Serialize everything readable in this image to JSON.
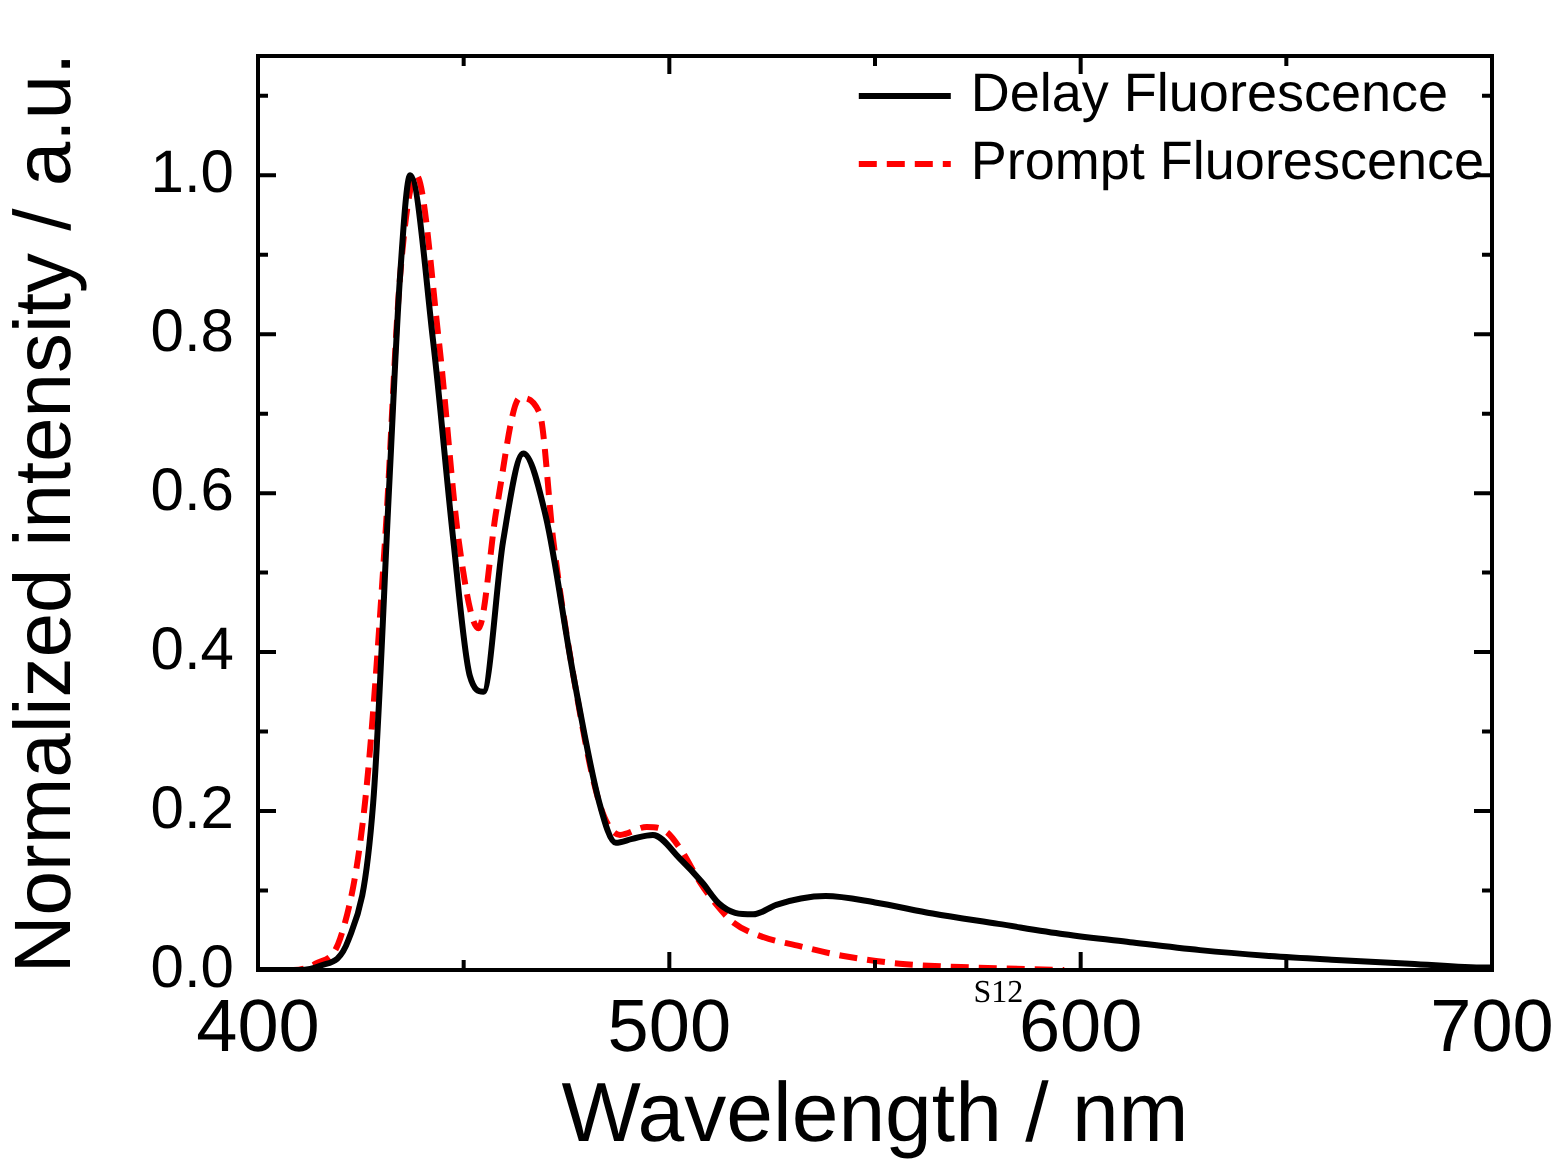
{
  "chart_data": {
    "type": "line",
    "xlabel": "Wavelength / nm",
    "ylabel": "Normalized intensity / a.u.",
    "xlim": [
      400,
      700
    ],
    "ylim": [
      0,
      1.15
    ],
    "xticks": [
      400,
      {
        "value": 450,
        "label": null
      },
      500,
      {
        "value": 550,
        "label": null
      },
      600,
      {
        "value": 650,
        "label": null
      },
      700
    ],
    "yticks": [
      {
        "value": 0,
        "label": "0.0"
      },
      {
        "value": 0.1,
        "label": null
      },
      {
        "value": 0.2,
        "label": "0.2"
      },
      {
        "value": 0.3,
        "label": null
      },
      {
        "value": 0.4,
        "label": "0.4"
      },
      {
        "value": 0.5,
        "label": null
      },
      {
        "value": 0.6,
        "label": "0.6"
      },
      {
        "value": 0.7,
        "label": null
      },
      {
        "value": 0.8,
        "label": "0.8"
      },
      {
        "value": 0.9,
        "label": null
      },
      {
        "value": 1,
        "label": "1.0"
      },
      {
        "value": 1.1,
        "label": null
      }
    ],
    "grid": false,
    "legend": "top right",
    "marker": "none",
    "series": [
      {
        "name": "Delay Fluorescence",
        "color": "#000000",
        "line_style": "solid",
        "x": [
          400,
          410,
          415,
          422,
          428,
          432,
          434.5,
          437,
          442.6,
          447.5,
          451.5,
          454.8,
          459.6,
          464.5,
          470,
          476.7,
          483,
          487,
          491,
          496,
          502.6,
          508,
          512,
          516,
          520.4,
          526,
          532,
          538,
          550,
          564,
          580,
          596,
          612,
          629,
          645,
          661,
          680,
          698.5,
          700
        ],
        "values": [
          0,
          0,
          0.005,
          0.038,
          0.21,
          0.62,
          0.87,
          1,
          0.79,
          0.54,
          0.37,
          0.35,
          0.54,
          0.65,
          0.57,
          0.37,
          0.21,
          0.16,
          0.165,
          0.17,
          0.14,
          0.11,
          0.084,
          0.072,
          0.07,
          0.082,
          0.09,
          0.093,
          0.085,
          0.071,
          0.058,
          0.045,
          0.035,
          0.025,
          0.018,
          0.013,
          0.008,
          0.003,
          0.003
        ]
      },
      {
        "name": "Prompt Fluorescence",
        "color": "#ff0000",
        "line_style": "dashed",
        "x": [
          400,
          408.6,
          414,
          420,
          426,
          431,
          434.5,
          438.5,
          444,
          448.8,
          453.6,
          458,
          463.7,
          468.5,
          471.8,
          476.7,
          483,
          488,
          494.5,
          499,
          503,
          507.5,
          511,
          515.5,
          522,
          531.7,
          542,
          556,
          575,
          596
        ],
        "values": [
          0,
          0,
          0.008,
          0.04,
          0.21,
          0.55,
          0.87,
          1,
          0.79,
          0.54,
          0.43,
          0.58,
          0.72,
          0.7,
          0.54,
          0.37,
          0.21,
          0.17,
          0.18,
          0.175,
          0.15,
          0.11,
          0.085,
          0.06,
          0.043,
          0.03,
          0.018,
          0.008,
          0.003,
          0
        ]
      }
    ],
    "annotations": [
      "S12"
    ]
  }
}
